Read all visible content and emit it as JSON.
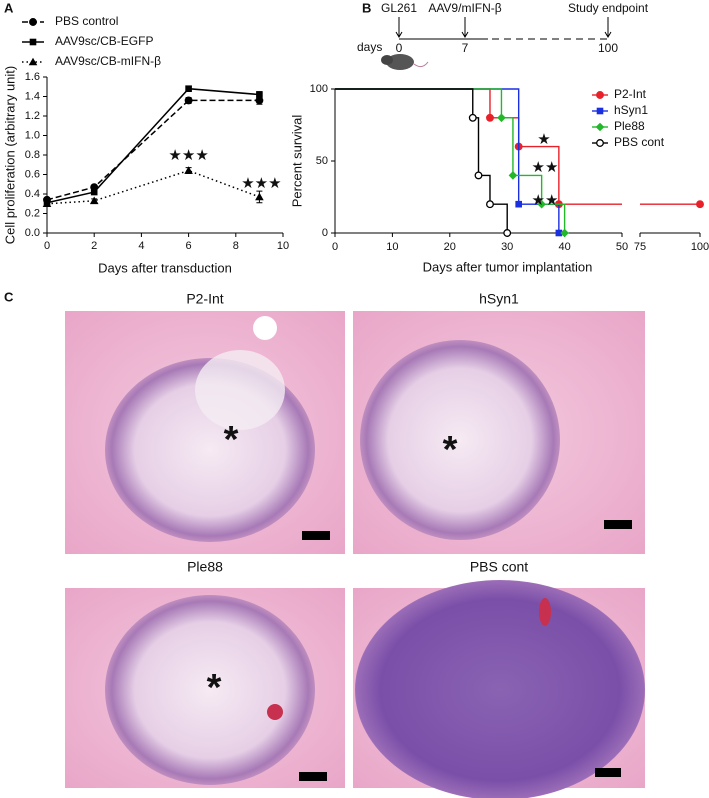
{
  "panels": {
    "a": "A",
    "b": "B",
    "c": "C"
  },
  "chart_data": [
    {
      "type": "line",
      "xlabel": "Days after transduction",
      "ylabel": "Cell proliferation (arbitrary unit)",
      "x": [
        0,
        2,
        6,
        9
      ],
      "xlim": [
        0,
        10
      ],
      "xticks": [
        0,
        2,
        4,
        6,
        8,
        10
      ],
      "ylim": [
        0,
        1.6
      ],
      "yticks": [
        {
          "value": 0,
          "label": "0.0"
        },
        0.2,
        0.4,
        0.6,
        0.8,
        {
          "value": 1,
          "label": "1.0"
        },
        1.2,
        1.4,
        1.6
      ],
      "series": [
        {
          "name": "PBS control",
          "color": "#000000",
          "marker": "circle",
          "dash": "dashed",
          "values": [
            0.34,
            0.47,
            1.36,
            1.36
          ],
          "errors": [
            0.02,
            0.02,
            0.03,
            0.04
          ]
        },
        {
          "name": "AAV9sc/CB-EGFP",
          "color": "#000000",
          "marker": "square",
          "dash": "solid",
          "values": [
            0.31,
            0.42,
            1.48,
            1.42
          ],
          "errors": [
            0.02,
            0.02,
            0.02,
            0.03
          ]
        },
        {
          "name": "AAV9sc/CB-mIFN-β",
          "color": "#000000",
          "marker": "triangle",
          "dash": "dotted",
          "values": [
            0.3,
            0.33,
            0.64,
            0.37
          ],
          "errors": [
            0.02,
            0.02,
            0.03,
            0.06
          ]
        }
      ],
      "annotations": [
        "★★★",
        "★★★"
      ]
    },
    {
      "type": "survival",
      "xlabel": "Days after tumor implantation",
      "ylabel": "Percent survival",
      "xlim": [
        0,
        100
      ],
      "xticks": [
        0,
        10,
        20,
        30,
        40,
        50,
        75,
        100
      ],
      "axis_break": [
        50,
        75
      ],
      "ylim": [
        0,
        100
      ],
      "yticks": [
        0,
        50,
        100
      ],
      "legend": "upper right",
      "series": [
        {
          "name": "P2-Int",
          "color": "#e8202a",
          "marker": "circle",
          "x": [
            0,
            27,
            32,
            39,
            100
          ],
          "values": [
            100,
            80,
            60,
            20,
            20
          ]
        },
        {
          "name": "hSyn1",
          "color": "#1a2fe0",
          "marker": "square",
          "x": [
            0,
            32,
            39
          ],
          "values": [
            100,
            20,
            0
          ]
        },
        {
          "name": "Ple88",
          "color": "#22b82a",
          "marker": "diamond",
          "x": [
            0,
            29,
            31,
            36,
            40
          ],
          "values": [
            100,
            80,
            40,
            20,
            0
          ]
        },
        {
          "name": "PBS cont",
          "color": "#000000",
          "marker": "open-circle",
          "x": [
            0,
            24,
            25,
            27,
            30
          ],
          "values": [
            100,
            80,
            40,
            20,
            0
          ]
        }
      ],
      "annotations": [
        "★",
        "★★",
        "★★"
      ]
    }
  ],
  "timeline": {
    "unit": "days",
    "events": [
      {
        "label": "GL261",
        "day": "0"
      },
      {
        "label": "AAV9/mIFN-β",
        "day": "7"
      },
      {
        "label": "Study endpoint",
        "day": "100"
      }
    ]
  },
  "histology": [
    {
      "title": "P2-Int",
      "marker": "*"
    },
    {
      "title": "hSyn1",
      "marker": "*"
    },
    {
      "title": "Ple88",
      "marker": "*"
    },
    {
      "title": "PBS cont"
    }
  ]
}
